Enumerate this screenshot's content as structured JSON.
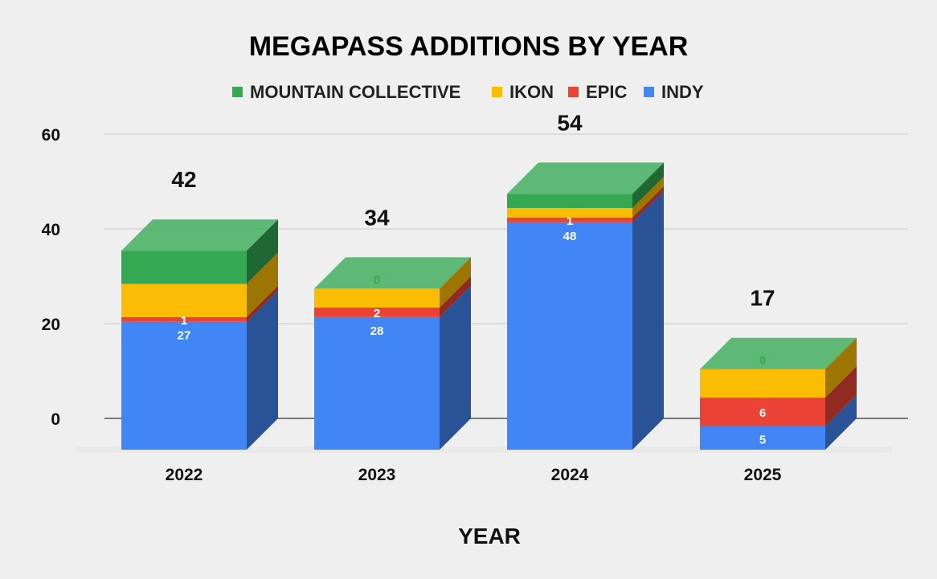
{
  "chart_data": {
    "type": "bar",
    "stacked": true,
    "title": "MEGAPASS ADDITIONS BY YEAR",
    "xlabel": "YEAR",
    "ylabel": "",
    "ylim": [
      0,
      60
    ],
    "yticks": [
      0,
      20,
      40,
      60
    ],
    "ytick_labels": [
      "0",
      "20",
      "40",
      "60"
    ],
    "legend_position": "top",
    "categories": [
      "2022",
      "2023",
      "2024",
      "2025"
    ],
    "series": [
      {
        "name": "INDY",
        "values": [
          27,
          28,
          48,
          5
        ],
        "color": "#4285f4",
        "label_color": "#ffffff"
      },
      {
        "name": "EPIC",
        "values": [
          1,
          2,
          1,
          6
        ],
        "color": "#ea4335",
        "label_color": "#ffffff"
      },
      {
        "name": "IKON",
        "values": [
          7,
          4,
          2,
          6
        ],
        "color": "#fbbc04",
        "label_color": "#fbbc04"
      },
      {
        "name": "MOUNTAIN COLLECTIVE",
        "values": [
          7,
          0,
          3,
          0
        ],
        "color": "#34a853",
        "label_color": "#34a853"
      }
    ],
    "data_labels": [
      {
        "category": "2022",
        "labels": [
          "27",
          "1",
          "7",
          "7"
        ]
      },
      {
        "category": "2023",
        "labels": [
          "28",
          "2",
          "4",
          "0"
        ]
      },
      {
        "category": "2024",
        "labels": [
          "48",
          "1",
          "2",
          "3"
        ]
      },
      {
        "category": "2025",
        "labels": [
          "5",
          "6",
          "6",
          "0"
        ]
      }
    ],
    "totals": [
      "42",
      "34",
      "54",
      "17"
    ]
  }
}
